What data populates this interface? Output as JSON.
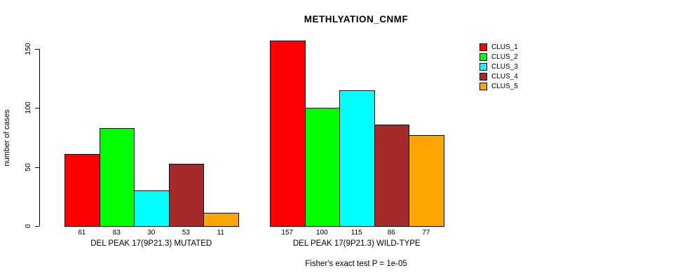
{
  "title": "METHLYATION_CNMF",
  "annotation": "Fisher's exact test P = 1e-05",
  "ylabel": "number of cases",
  "chart_data": {
    "type": "bar",
    "title": "METHLYATION_CNMF",
    "xlabel": "",
    "ylabel": "number of cases",
    "ylim": [
      0,
      150
    ],
    "yticks": [
      0,
      50,
      100,
      150
    ],
    "grid": false,
    "legend_position": "right-inside",
    "background": "#ffffff",
    "bar_border_color": "#000000",
    "categories": [
      "DEL PEAK 17(9P21.3) MUTATED",
      "DEL PEAK 17(9P21.3) WILD-TYPE"
    ],
    "series": [
      {
        "name": "CLUS_1",
        "color": "#FF0000",
        "values": [
          61,
          157
        ]
      },
      {
        "name": "CLUS_2",
        "color": "#00FF00",
        "values": [
          83,
          100
        ]
      },
      {
        "name": "CLUS_3",
        "color": "#00FFFF",
        "values": [
          30,
          115
        ]
      },
      {
        "name": "CLUS_4",
        "color": "#A52A2A",
        "values": [
          53,
          86
        ]
      },
      {
        "name": "CLUS_5",
        "color": "#FFA500",
        "values": [
          11,
          77
        ]
      }
    ],
    "bar_value_labels": [
      [
        61,
        83,
        30,
        53,
        11
      ],
      [
        157,
        100,
        115,
        86,
        77
      ]
    ],
    "annotation": "Fisher's exact test P = 1e-05"
  }
}
